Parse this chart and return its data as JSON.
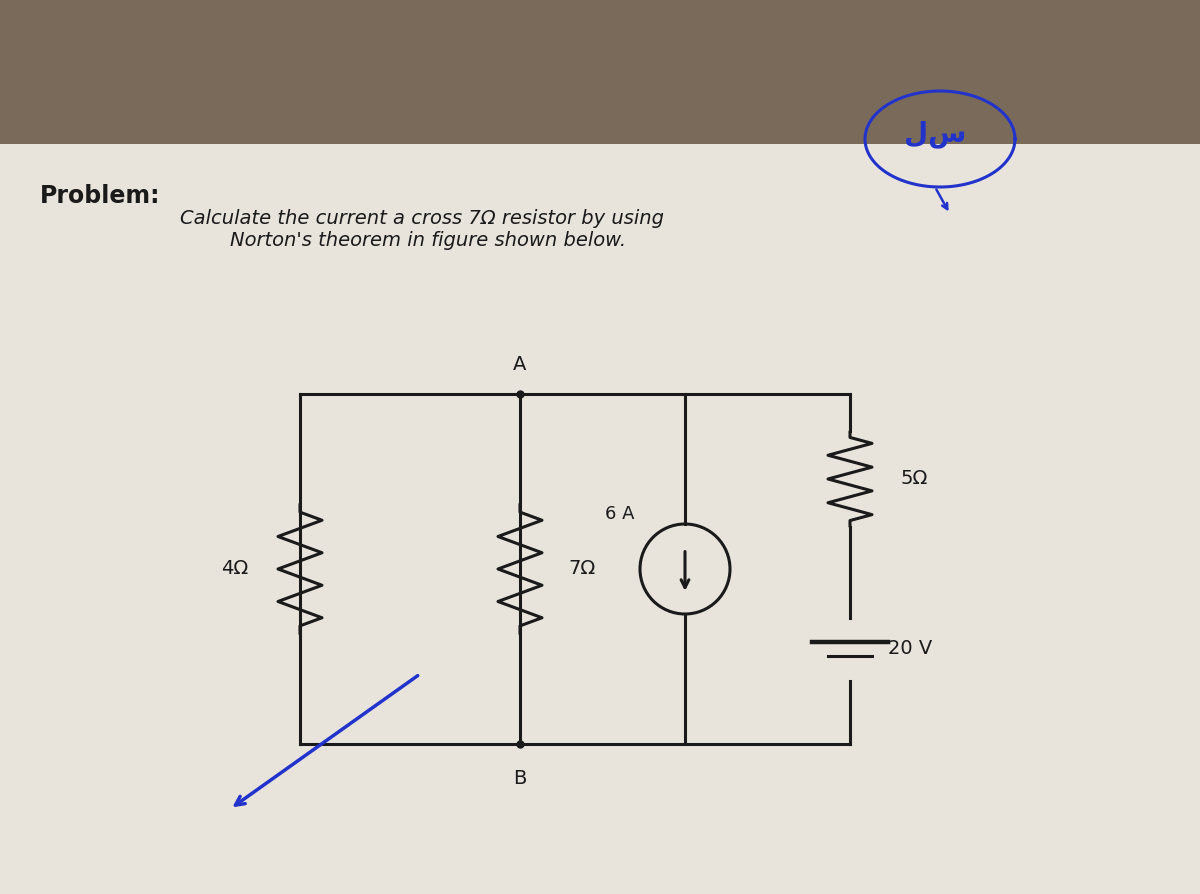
{
  "bg_color": "#7a6a5a",
  "paper_color": "#e8e4dc",
  "title_bold": "Problem:",
  "circuit": {
    "r4_label": "4Ω",
    "r7_label": "7Ω",
    "r5_label": "5Ω",
    "cs_label": "6 A",
    "vs_label": "20 V",
    "node_A": "A",
    "node_B": "B"
  },
  "annotation_color": "#2233cc",
  "line_color": "#1a1a1a",
  "text_color": "#1a1a1a"
}
